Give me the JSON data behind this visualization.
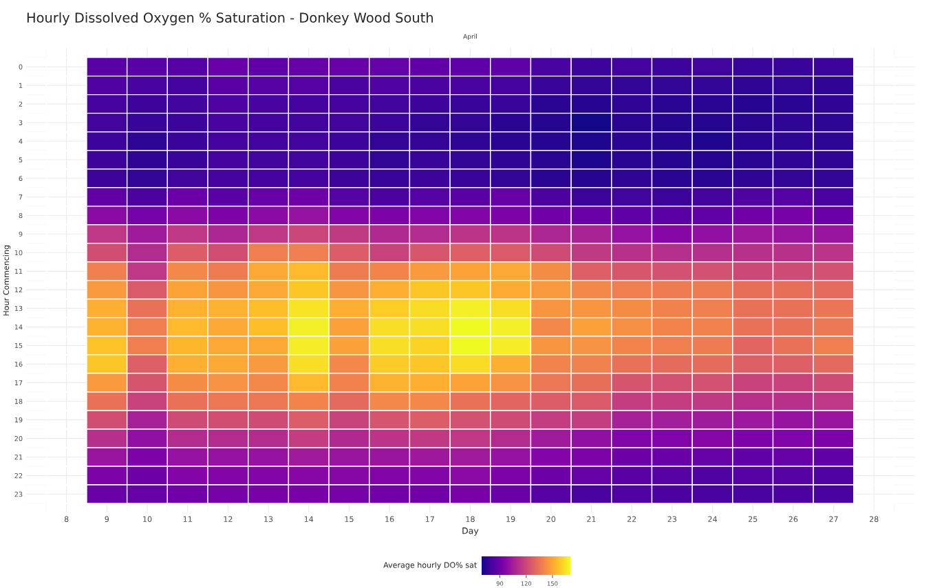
{
  "chart_data": {
    "type": "heatmap",
    "title": "Hourly Dissolved Oxygen % Saturation - Donkey Wood South",
    "subtitle": "April",
    "xlabel": "Day",
    "ylabel": "Hour Commencing",
    "clabel": "Average hourly DO% sat",
    "categories": [
      "8",
      "9",
      "10",
      "11",
      "12",
      "13",
      "14",
      "15",
      "16",
      "17",
      "18",
      "19",
      "20",
      "21",
      "22",
      "23",
      "24",
      "25",
      "26",
      "27",
      "28"
    ],
    "y_categories": [
      "0",
      "1",
      "2",
      "3",
      "4",
      "5",
      "6",
      "7",
      "8",
      "9",
      "10",
      "11",
      "12",
      "13",
      "14",
      "15",
      "16",
      "17",
      "18",
      "19",
      "20",
      "21",
      "22",
      "23"
    ],
    "cells": [
      [
        null,
        85,
        85,
        84,
        89,
        87,
        88,
        89,
        88,
        87,
        86,
        86,
        81,
        78,
        80,
        78,
        79,
        77,
        77,
        78,
        null
      ],
      [
        null,
        83,
        81,
        80,
        85,
        84,
        84,
        82,
        83,
        82,
        82,
        80,
        77,
        76,
        76,
        76,
        76,
        75,
        76,
        75,
        null
      ],
      [
        null,
        80,
        78,
        79,
        83,
        81,
        80,
        80,
        79,
        78,
        77,
        77,
        74,
        73,
        75,
        74,
        74,
        73,
        74,
        75,
        null
      ],
      [
        null,
        79,
        77,
        78,
        81,
        80,
        79,
        79,
        78,
        76,
        76,
        74,
        73,
        70,
        74,
        73,
        73,
        74,
        75,
        75,
        null
      ],
      [
        null,
        78,
        75,
        77,
        80,
        79,
        79,
        78,
        76,
        76,
        75,
        74,
        73,
        72,
        74,
        73,
        72,
        74,
        75,
        75,
        null
      ],
      [
        null,
        78,
        75,
        77,
        80,
        79,
        79,
        78,
        76,
        77,
        76,
        75,
        74,
        72,
        74,
        73,
        73,
        74,
        75,
        75,
        null
      ],
      [
        null,
        78,
        76,
        79,
        80,
        80,
        80,
        78,
        77,
        78,
        77,
        76,
        74,
        73,
        75,
        74,
        74,
        75,
        76,
        76,
        null
      ],
      [
        null,
        87,
        82,
        89,
        85,
        88,
        90,
        84,
        82,
        84,
        85,
        88,
        82,
        78,
        79,
        78,
        80,
        83,
        84,
        81,
        null
      ],
      [
        null,
        98,
        92,
        98,
        94,
        98,
        101,
        96,
        94,
        95,
        96,
        94,
        91,
        89,
        87,
        85,
        87,
        91,
        93,
        89,
        null
      ],
      [
        null,
        114,
        104,
        114,
        108,
        114,
        119,
        115,
        109,
        110,
        113,
        113,
        108,
        107,
        101,
        97,
        100,
        103,
        102,
        102,
        null
      ],
      [
        null,
        122,
        110,
        127,
        122,
        138,
        138,
        127,
        118,
        125,
        128,
        126,
        121,
        115,
        112,
        111,
        111,
        112,
        112,
        113,
        null
      ],
      [
        null,
        138,
        114,
        141,
        137,
        150,
        155,
        137,
        140,
        146,
        149,
        150,
        142,
        128,
        125,
        123,
        123,
        120,
        121,
        123,
        null
      ],
      [
        null,
        146,
        126,
        149,
        145,
        150,
        158,
        145,
        152,
        158,
        158,
        151,
        146,
        141,
        138,
        137,
        137,
        133,
        133,
        132,
        null
      ],
      [
        null,
        152,
        134,
        153,
        153,
        156,
        165,
        152,
        160,
        163,
        168,
        164,
        145,
        145,
        142,
        139,
        138,
        134,
        134,
        135,
        null
      ],
      [
        null,
        153,
        138,
        155,
        150,
        156,
        168,
        148,
        164,
        164,
        170,
        168,
        141,
        148,
        143,
        140,
        139,
        134,
        134,
        136,
        null
      ],
      [
        null,
        157,
        138,
        154,
        150,
        150,
        167,
        148,
        164,
        161,
        170,
        167,
        145,
        144,
        140,
        138,
        137,
        130,
        134,
        138,
        null
      ],
      [
        null,
        158,
        128,
        152,
        150,
        146,
        164,
        141,
        159,
        158,
        163,
        152,
        140,
        139,
        134,
        132,
        132,
        128,
        128,
        131,
        null
      ],
      [
        null,
        146,
        124,
        142,
        144,
        141,
        155,
        139,
        153,
        152,
        149,
        144,
        136,
        133,
        124,
        123,
        123,
        118,
        118,
        121,
        null
      ],
      [
        null,
        134,
        118,
        134,
        136,
        136,
        140,
        131,
        141,
        141,
        134,
        130,
        127,
        126,
        116,
        116,
        115,
        112,
        112,
        114,
        null
      ],
      [
        null,
        122,
        106,
        121,
        122,
        121,
        127,
        118,
        124,
        127,
        123,
        121,
        116,
        116,
        106,
        105,
        104,
        103,
        101,
        102,
        null
      ],
      [
        null,
        111,
        100,
        110,
        110,
        110,
        116,
        109,
        113,
        115,
        114,
        110,
        104,
        100,
        95,
        95,
        97,
        94,
        95,
        94,
        null
      ],
      [
        null,
        102,
        94,
        101,
        101,
        101,
        104,
        102,
        102,
        103,
        104,
        101,
        96,
        94,
        90,
        89,
        88,
        87,
        88,
        87,
        null
      ],
      [
        null,
        94,
        90,
        96,
        96,
        96,
        97,
        97,
        95,
        96,
        98,
        94,
        90,
        88,
        85,
        84,
        83,
        84,
        84,
        83,
        null
      ],
      [
        null,
        89,
        88,
        91,
        92,
        93,
        93,
        92,
        91,
        91,
        93,
        89,
        84,
        81,
        83,
        82,
        81,
        81,
        82,
        81,
        null
      ]
    ],
    "clim": [
      69,
      170
    ],
    "cticks": [
      90,
      120,
      150
    ],
    "grid": true
  }
}
